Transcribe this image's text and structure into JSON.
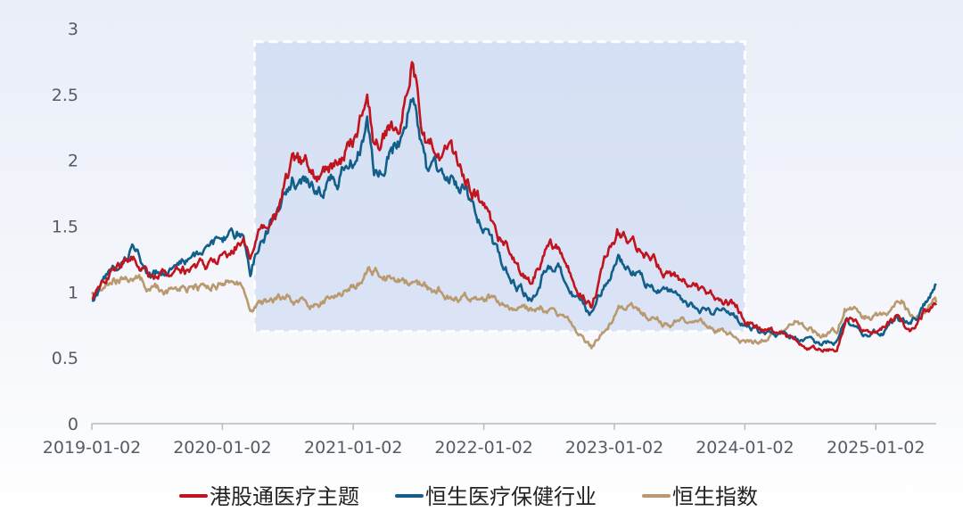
{
  "chart_data": {
    "type": "line",
    "title": "",
    "xlabel": "",
    "ylabel": "",
    "ylim": [
      0,
      3
    ],
    "y_ticks": [
      "0",
      "0.5",
      "1",
      "1.5",
      "2",
      "2.5",
      "3"
    ],
    "x_ticks": [
      "2019-01-02",
      "2020-01-02",
      "2021-01-02",
      "2022-01-02",
      "2023-01-02",
      "2024-01-02",
      "2025-01-02"
    ],
    "x_range": [
      "2019-01-02",
      "2025-06-20"
    ],
    "highlight_range": {
      "x": [
        "2020-04-01",
        "2024-01-02"
      ],
      "y": [
        0.7,
        2.9
      ]
    },
    "grid": false,
    "legend_position": "bottom",
    "series": [
      {
        "name": "港股通医疗主题",
        "color": "#c0141f",
        "points": [
          [
            "2019-01-02",
            0.95
          ],
          [
            "2019-03-01",
            1.18
          ],
          [
            "2019-05-01",
            1.28
          ],
          [
            "2019-06-15",
            1.12
          ],
          [
            "2019-08-15",
            1.12
          ],
          [
            "2019-10-01",
            1.18
          ],
          [
            "2019-12-01",
            1.2
          ],
          [
            "2020-01-15",
            1.3
          ],
          [
            "2020-03-01",
            1.4
          ],
          [
            "2020-03-20",
            1.2
          ],
          [
            "2020-04-15",
            1.45
          ],
          [
            "2020-06-01",
            1.6
          ],
          [
            "2020-07-15",
            1.95
          ],
          [
            "2020-08-15",
            1.95
          ],
          [
            "2020-10-01",
            1.85
          ],
          [
            "2020-12-01",
            2.0
          ],
          [
            "2021-01-15",
            2.2
          ],
          [
            "2021-02-10",
            2.55
          ],
          [
            "2021-03-01",
            2.15
          ],
          [
            "2021-04-01",
            2.2
          ],
          [
            "2021-05-15",
            2.35
          ],
          [
            "2021-06-15",
            2.75
          ],
          [
            "2021-07-01",
            2.5
          ],
          [
            "2021-07-25",
            2.1
          ],
          [
            "2021-09-15",
            2.05
          ],
          [
            "2021-11-15",
            1.9
          ],
          [
            "2022-01-15",
            1.55
          ],
          [
            "2022-03-01",
            1.35
          ],
          [
            "2022-04-01",
            1.2
          ],
          [
            "2022-05-15",
            1.05
          ],
          [
            "2022-07-01",
            1.35
          ],
          [
            "2022-08-01",
            1.3
          ],
          [
            "2022-10-01",
            1.0
          ],
          [
            "2022-10-30",
            0.9
          ],
          [
            "2023-01-10",
            1.48
          ],
          [
            "2023-03-01",
            1.35
          ],
          [
            "2023-05-01",
            1.2
          ],
          [
            "2023-07-01",
            1.1
          ],
          [
            "2023-08-01",
            1.05
          ],
          [
            "2023-10-01",
            0.96
          ],
          [
            "2023-12-10",
            0.9
          ],
          [
            "2024-01-02",
            0.78
          ],
          [
            "2024-02-15",
            0.72
          ],
          [
            "2024-04-15",
            0.68
          ],
          [
            "2024-06-15",
            0.6
          ],
          [
            "2024-08-01",
            0.57
          ],
          [
            "2024-09-15",
            0.58
          ],
          [
            "2024-10-10",
            0.8
          ],
          [
            "2024-12-01",
            0.7
          ],
          [
            "2025-02-01",
            0.75
          ],
          [
            "2025-03-01",
            0.82
          ],
          [
            "2025-04-10",
            0.7
          ],
          [
            "2025-05-15",
            0.85
          ],
          [
            "2025-06-20",
            0.9
          ]
        ]
      },
      {
        "name": "恒生医疗保健行业",
        "color": "#125f8a",
        "points": [
          [
            "2019-01-02",
            0.92
          ],
          [
            "2019-03-01",
            1.15
          ],
          [
            "2019-05-01",
            1.3
          ],
          [
            "2019-06-15",
            1.12
          ],
          [
            "2019-08-15",
            1.15
          ],
          [
            "2019-10-01",
            1.25
          ],
          [
            "2019-12-01",
            1.32
          ],
          [
            "2020-01-15",
            1.4
          ],
          [
            "2020-03-01",
            1.45
          ],
          [
            "2020-03-20",
            1.15
          ],
          [
            "2020-04-15",
            1.4
          ],
          [
            "2020-06-01",
            1.55
          ],
          [
            "2020-07-15",
            1.85
          ],
          [
            "2020-08-15",
            1.85
          ],
          [
            "2020-10-01",
            1.78
          ],
          [
            "2020-12-01",
            1.9
          ],
          [
            "2021-01-15",
            2.05
          ],
          [
            "2021-02-10",
            2.35
          ],
          [
            "2021-03-01",
            1.95
          ],
          [
            "2021-04-01",
            2.05
          ],
          [
            "2021-05-15",
            2.15
          ],
          [
            "2021-06-15",
            2.5
          ],
          [
            "2021-07-01",
            2.3
          ],
          [
            "2021-07-25",
            1.95
          ],
          [
            "2021-09-15",
            1.9
          ],
          [
            "2021-11-15",
            1.75
          ],
          [
            "2022-01-15",
            1.4
          ],
          [
            "2022-03-01",
            1.2
          ],
          [
            "2022-04-01",
            1.05
          ],
          [
            "2022-05-15",
            0.95
          ],
          [
            "2022-07-01",
            1.22
          ],
          [
            "2022-08-01",
            1.18
          ],
          [
            "2022-10-01",
            0.9
          ],
          [
            "2022-10-30",
            0.82
          ],
          [
            "2023-01-10",
            1.28
          ],
          [
            "2023-03-01",
            1.15
          ],
          [
            "2023-05-01",
            1.0
          ],
          [
            "2023-07-01",
            0.95
          ],
          [
            "2023-08-01",
            0.9
          ],
          [
            "2023-10-01",
            0.85
          ],
          [
            "2023-12-10",
            0.82
          ],
          [
            "2024-01-02",
            0.75
          ],
          [
            "2024-02-15",
            0.7
          ],
          [
            "2024-04-15",
            0.68
          ],
          [
            "2024-06-15",
            0.62
          ],
          [
            "2024-08-01",
            0.6
          ],
          [
            "2024-09-15",
            0.62
          ],
          [
            "2024-10-10",
            0.78
          ],
          [
            "2024-12-01",
            0.68
          ],
          [
            "2025-02-01",
            0.72
          ],
          [
            "2025-03-01",
            0.8
          ],
          [
            "2025-04-10",
            0.75
          ],
          [
            "2025-05-15",
            0.88
          ],
          [
            "2025-06-20",
            1.05
          ]
        ]
      },
      {
        "name": "恒生指数",
        "color": "#b89a6e",
        "points": [
          [
            "2019-01-02",
            0.97
          ],
          [
            "2019-02-15",
            1.08
          ],
          [
            "2019-04-15",
            1.15
          ],
          [
            "2019-06-01",
            1.05
          ],
          [
            "2019-08-15",
            1.0
          ],
          [
            "2019-10-01",
            1.05
          ],
          [
            "2019-12-01",
            1.03
          ],
          [
            "2020-01-15",
            1.08
          ],
          [
            "2020-03-01",
            1.02
          ],
          [
            "2020-03-20",
            0.85
          ],
          [
            "2020-05-01",
            0.92
          ],
          [
            "2020-07-01",
            0.95
          ],
          [
            "2020-09-15",
            0.9
          ],
          [
            "2020-11-15",
            0.97
          ],
          [
            "2021-01-02",
            1.03
          ],
          [
            "2021-02-15",
            1.15
          ],
          [
            "2021-04-01",
            1.1
          ],
          [
            "2021-06-01",
            1.1
          ],
          [
            "2021-08-01",
            1.03
          ],
          [
            "2021-10-01",
            0.98
          ],
          [
            "2021-12-01",
            0.94
          ],
          [
            "2022-01-15",
            0.98
          ],
          [
            "2022-03-15",
            0.85
          ],
          [
            "2022-06-15",
            0.88
          ],
          [
            "2022-08-15",
            0.8
          ],
          [
            "2022-10-30",
            0.58
          ],
          [
            "2023-01-20",
            0.88
          ],
          [
            "2023-04-01",
            0.82
          ],
          [
            "2023-06-01",
            0.75
          ],
          [
            "2023-08-01",
            0.78
          ],
          [
            "2023-10-01",
            0.72
          ],
          [
            "2023-12-01",
            0.67
          ],
          [
            "2024-01-22",
            0.62
          ],
          [
            "2024-03-15",
            0.66
          ],
          [
            "2024-05-20",
            0.76
          ],
          [
            "2024-08-01",
            0.68
          ],
          [
            "2024-09-15",
            0.7
          ],
          [
            "2024-10-07",
            0.9
          ],
          [
            "2024-12-01",
            0.8
          ],
          [
            "2025-02-01",
            0.85
          ],
          [
            "2025-03-15",
            0.95
          ],
          [
            "2025-04-10",
            0.82
          ],
          [
            "2025-06-20",
            0.92
          ]
        ]
      }
    ]
  }
}
